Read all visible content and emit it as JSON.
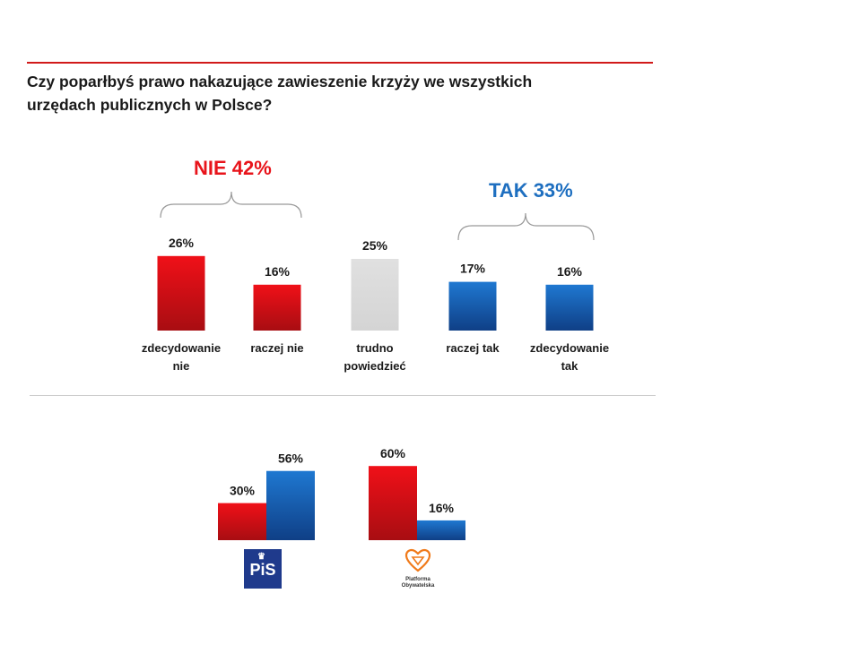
{
  "title_line1": "Czy poparłbyś prawo nakazujące zawieszenie krzyży we wszystkich",
  "title_line2": "urzędach publicznych w Polsce?",
  "groups": {
    "nie": "NIE 42%",
    "tak": "TAK 33%"
  },
  "colors": {
    "red": "#e8141b",
    "blue": "#1e6fc0",
    "gray": "#dcdcdc"
  },
  "chart_data": [
    {
      "type": "bar",
      "title": "",
      "categories": [
        "zdecydowanie nie",
        "raczej nie",
        "trudno powiedzieć",
        "raczej tak",
        "zdecydowanie tak"
      ],
      "category_lines": [
        [
          "zdecydowanie",
          "nie"
        ],
        [
          "raczej nie"
        ],
        [
          "trudno",
          "powiedzieć"
        ],
        [
          "raczej tak"
        ],
        [
          "zdecydowanie",
          "tak"
        ]
      ],
      "values": [
        26,
        16,
        25,
        17,
        16
      ],
      "labels": [
        "26%",
        "16%",
        "25%",
        "17%",
        "16%"
      ],
      "bar_colors": [
        "red",
        "red",
        "gray",
        "blue",
        "blue"
      ]
    },
    {
      "type": "bar",
      "title": "",
      "categories": [
        "PiS",
        "Platforma Obywatelska"
      ],
      "series": [
        {
          "values": [
            30,
            60
          ],
          "labels": [
            "30%",
            "60%"
          ],
          "color": "red"
        },
        {
          "values": [
            56,
            16
          ],
          "labels": [
            "56%",
            "16%"
          ],
          "color": "blue"
        }
      ]
    }
  ],
  "logos": {
    "pis": "PiS",
    "po_line1": "Platforma",
    "po_line2": "Obywatelska"
  }
}
